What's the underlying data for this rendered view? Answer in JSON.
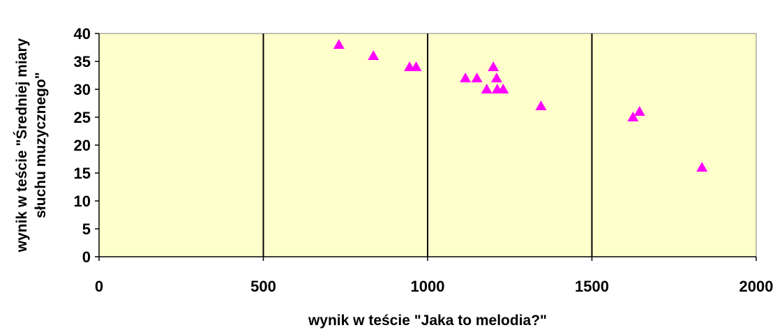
{
  "chart_data": {
    "type": "scatter",
    "title": "",
    "xlabel": "wynik  w teście \"Jaka to melodia?\"",
    "ylabel_lines": [
      "wynik  w teście \"Średniej miary",
      "słuchu muzycznego\""
    ],
    "xlim": [
      0,
      2000
    ],
    "ylim": [
      0,
      40
    ],
    "x_ticks": [
      0,
      500,
      1000,
      1500,
      2000
    ],
    "y_ticks": [
      0,
      5,
      10,
      15,
      20,
      25,
      30,
      35,
      40
    ],
    "x_tick_labels": [
      "0",
      "500",
      "1000",
      "1500",
      "2000"
    ],
    "y_tick_labels": [
      "0",
      "5",
      "10",
      "15",
      "20",
      "25",
      "30",
      "35",
      "40"
    ],
    "grid": "vertical major gridlines",
    "legend": "none",
    "plot_background": "#FFFFCC",
    "marker": "triangle",
    "marker_color": "#FF00FF",
    "series": [
      {
        "points": [
          {
            "x": 730,
            "y": 38
          },
          {
            "x": 835,
            "y": 36
          },
          {
            "x": 945,
            "y": 34
          },
          {
            "x": 965,
            "y": 34
          },
          {
            "x": 1115,
            "y": 32
          },
          {
            "x": 1150,
            "y": 32
          },
          {
            "x": 1180,
            "y": 30
          },
          {
            "x": 1200,
            "y": 34
          },
          {
            "x": 1210,
            "y": 32
          },
          {
            "x": 1212,
            "y": 30
          },
          {
            "x": 1230,
            "y": 30
          },
          {
            "x": 1345,
            "y": 27
          },
          {
            "x": 1625,
            "y": 25
          },
          {
            "x": 1645,
            "y": 26
          },
          {
            "x": 1835,
            "y": 16
          }
        ]
      }
    ]
  }
}
